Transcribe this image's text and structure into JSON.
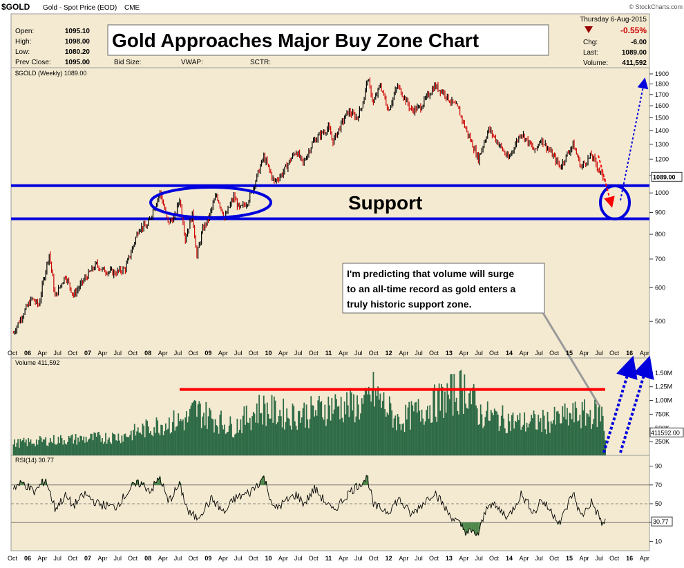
{
  "header": {
    "symbol": "$GOLD",
    "description": "Gold - Spot Price (EOD)",
    "exchange": "CME",
    "source": "© StockCharts.com",
    "date": "Thursday  6-Aug-2015",
    "pct_change": "-0.55%",
    "chg_label": "Chg:",
    "chg_value": "-6.00",
    "last_label": "Last:",
    "last_value": "1089.00",
    "volume_label": "Volume:",
    "volume_value": "411,592",
    "open_label": "Open:",
    "open_value": "1095.10",
    "high_label": "High:",
    "high_value": "1098.00",
    "low_label": "Low:",
    "low_value": "1080.20",
    "prev_label": "Prev Close:",
    "prev_value": "1095.00",
    "bid_label": "Bid Size:",
    "vwap_label": "VWAP:",
    "sctr_label": "SCTR:"
  },
  "annotations": {
    "title_box": "Gold Approaches Major Buy Zone Chart",
    "support_label": "Support",
    "callout": [
      "I'm predicting that volume will surge",
      "to an all-time record as gold enters a",
      "truly historic support zone."
    ]
  },
  "colors": {
    "panel_bg": "#f4ead1",
    "price_up": "#000000",
    "price_down": "#cc0000",
    "support_lines": "#0000dd",
    "volume_bars": "#2e6b46",
    "resistance_line": "#ff0000",
    "rsi_fill": "#3a7a3a"
  },
  "chart_data": [
    {
      "type": "line",
      "panel": "price",
      "legend": "$GOLD (Weekly) 1089.00",
      "last_label": "1089.00",
      "scale": "log",
      "ylim": [
        420,
        1950
      ],
      "yticks": [
        500,
        600,
        700,
        800,
        900,
        1000,
        1100,
        1200,
        1300,
        1400,
        1500,
        1600,
        1700,
        1800,
        1900
      ],
      "x_range": [
        "2005-10-01",
        "2016-05-01"
      ],
      "x_ticks": [
        "Oct",
        "06",
        "Apr",
        "Jul",
        "Oct",
        "07",
        "Apr",
        "Jul",
        "Oct",
        "08",
        "Apr",
        "Jul",
        "Oct",
        "09",
        "Apr",
        "Jul",
        "Oct",
        "10",
        "Apr",
        "Jul",
        "Oct",
        "11",
        "Apr",
        "Jul",
        "Oct",
        "12",
        "Apr",
        "Jul",
        "Oct",
        "13",
        "Apr",
        "Jul",
        "Oct",
        "14",
        "Apr",
        "Jul",
        "Oct",
        "15",
        "Apr",
        "Jul",
        "Oct",
        "16",
        "Apr"
      ],
      "x_tick_dates": [
        "2005-10",
        "2006-01",
        "2006-04",
        "2006-07",
        "2006-10",
        "2007-01",
        "2007-04",
        "2007-07",
        "2007-10",
        "2008-01",
        "2008-04",
        "2008-07",
        "2008-10",
        "2009-01",
        "2009-04",
        "2009-07",
        "2009-10",
        "2010-01",
        "2010-04",
        "2010-07",
        "2010-10",
        "2011-01",
        "2011-04",
        "2011-07",
        "2011-10",
        "2012-01",
        "2012-04",
        "2012-07",
        "2012-10",
        "2013-01",
        "2013-04",
        "2013-07",
        "2013-10",
        "2014-01",
        "2014-04",
        "2014-07",
        "2014-10",
        "2015-01",
        "2015-04",
        "2015-07",
        "2015-10",
        "2016-01",
        "2016-04"
      ],
      "support_levels": [
        1040,
        870
      ],
      "points": [
        [
          "2005-10-07",
          470
        ],
        [
          "2005-12-09",
          525
        ],
        [
          "2006-01-27",
          565
        ],
        [
          "2006-03-10",
          545
        ],
        [
          "2006-05-12",
          720
        ],
        [
          "2006-06-16",
          570
        ],
        [
          "2006-08-18",
          640
        ],
        [
          "2006-10-06",
          575
        ],
        [
          "2006-12-15",
          630
        ],
        [
          "2007-02-23",
          680
        ],
        [
          "2007-03-30",
          660
        ],
        [
          "2007-06-15",
          650
        ],
        [
          "2007-08-17",
          665
        ],
        [
          "2007-09-28",
          740
        ],
        [
          "2007-11-09",
          830
        ],
        [
          "2007-12-28",
          835
        ],
        [
          "2008-02-29",
          970
        ],
        [
          "2008-03-14",
          1003
        ],
        [
          "2008-05-02",
          850
        ],
        [
          "2008-06-13",
          880
        ],
        [
          "2008-07-11",
          970
        ],
        [
          "2008-08-15",
          780
        ],
        [
          "2008-09-26",
          890
        ],
        [
          "2008-10-24",
          710
        ],
        [
          "2008-11-28",
          820
        ],
        [
          "2009-01-02",
          870
        ],
        [
          "2009-02-20",
          990
        ],
        [
          "2009-04-10",
          870
        ],
        [
          "2009-06-05",
          980
        ],
        [
          "2009-07-10",
          915
        ],
        [
          "2009-08-28",
          955
        ],
        [
          "2009-10-09",
          1050
        ],
        [
          "2009-12-04",
          1215
        ],
        [
          "2010-02-05",
          1060
        ],
        [
          "2010-03-26",
          1110
        ],
        [
          "2010-06-18",
          1255
        ],
        [
          "2010-07-30",
          1170
        ],
        [
          "2010-10-01",
          1320
        ],
        [
          "2010-11-12",
          1370
        ],
        [
          "2010-12-31",
          1420
        ],
        [
          "2011-01-28",
          1320
        ],
        [
          "2011-04-29",
          1550
        ],
        [
          "2011-06-24",
          1500
        ],
        [
          "2011-07-29",
          1630
        ],
        [
          "2011-08-26",
          1850
        ],
        [
          "2011-09-30",
          1620
        ],
        [
          "2011-11-11",
          1790
        ],
        [
          "2011-12-30",
          1560
        ],
        [
          "2012-02-24",
          1780
        ],
        [
          "2012-05-18",
          1560
        ],
        [
          "2012-07-13",
          1590
        ],
        [
          "2012-10-05",
          1780
        ],
        [
          "2012-11-30",
          1720
        ],
        [
          "2012-12-28",
          1660
        ],
        [
          "2013-02-22",
          1580
        ],
        [
          "2013-04-19",
          1390
        ],
        [
          "2013-06-28",
          1200
        ],
        [
          "2013-08-30",
          1410
        ],
        [
          "2013-12-27",
          1200
        ],
        [
          "2014-03-14",
          1385
        ],
        [
          "2014-06-06",
          1250
        ],
        [
          "2014-07-11",
          1340
        ],
        [
          "2014-11-07",
          1150
        ],
        [
          "2015-01-23",
          1300
        ],
        [
          "2015-03-13",
          1150
        ],
        [
          "2015-05-15",
          1225
        ],
        [
          "2015-07-24",
          1085
        ],
        [
          "2015-08-07",
          1089
        ]
      ]
    },
    {
      "type": "bar",
      "panel": "volume",
      "legend": "Volume 411,592",
      "last_label": "411592.00",
      "ylim": [
        0,
        1750000
      ],
      "yticks": [
        250000,
        500000,
        750000,
        1000000,
        1250000,
        1500000
      ],
      "ytick_labels": [
        "250K",
        "500K",
        "750K",
        "1.00M",
        "1.25M",
        "1.50M"
      ],
      "resistance_level": 1200000,
      "points": [
        [
          "2005-10-07",
          300000
        ],
        [
          "2006-06-01",
          380000
        ],
        [
          "2007-01-01",
          420000
        ],
        [
          "2007-08-01",
          480000
        ],
        [
          "2008-03-14",
          780000
        ],
        [
          "2008-09-01",
          900000
        ],
        [
          "2008-10-10",
          1150000
        ],
        [
          "2009-06-01",
          700000
        ],
        [
          "2009-11-13",
          1180000
        ],
        [
          "2010-05-14",
          1000000
        ],
        [
          "2010-10-08",
          1100000
        ],
        [
          "2011-01-14",
          1230000
        ],
        [
          "2011-08-12",
          1250000
        ],
        [
          "2011-09-23",
          1600000
        ],
        [
          "2012-03-01",
          850000
        ],
        [
          "2013-04-19",
          1700000
        ],
        [
          "2013-07-01",
          1050000
        ],
        [
          "2014-03-01",
          820000
        ],
        [
          "2014-09-01",
          850000
        ],
        [
          "2015-01-16",
          1000000
        ],
        [
          "2015-07-24",
          1050000
        ],
        [
          "2015-08-07",
          411592
        ]
      ]
    },
    {
      "type": "line",
      "panel": "rsi",
      "legend": "RSI(14) 30.77",
      "last_label": "30.77",
      "ylim": [
        0,
        100
      ],
      "yticks": [
        10,
        30,
        50,
        70,
        90
      ],
      "reference_lines": [
        30,
        50,
        70
      ],
      "points": [
        [
          "2005-10-07",
          68
        ],
        [
          "2005-12-09",
          72
        ],
        [
          "2006-02-10",
          62
        ],
        [
          "2006-04-21",
          76
        ],
        [
          "2006-06-16",
          45
        ],
        [
          "2006-08-18",
          58
        ],
        [
          "2006-10-06",
          48
        ],
        [
          "2006-12-15",
          60
        ],
        [
          "2007-03-02",
          50
        ],
        [
          "2007-06-15",
          46
        ],
        [
          "2007-09-28",
          68
        ],
        [
          "2007-11-16",
          72
        ],
        [
          "2008-01-18",
          64
        ],
        [
          "2008-03-14",
          78
        ],
        [
          "2008-05-02",
          52
        ],
        [
          "2008-07-11",
          70
        ],
        [
          "2008-09-05",
          40
        ],
        [
          "2008-10-24",
          35
        ],
        [
          "2009-01-23",
          55
        ],
        [
          "2009-04-10",
          40
        ],
        [
          "2009-06-05",
          55
        ],
        [
          "2009-09-11",
          62
        ],
        [
          "2009-12-04",
          78
        ],
        [
          "2010-02-05",
          44
        ],
        [
          "2010-06-18",
          60
        ],
        [
          "2010-08-06",
          50
        ],
        [
          "2010-10-08",
          66
        ],
        [
          "2011-01-28",
          42
        ],
        [
          "2011-05-06",
          62
        ],
        [
          "2011-08-26",
          78
        ],
        [
          "2011-09-30",
          48
        ],
        [
          "2011-12-30",
          42
        ],
        [
          "2012-03-02",
          55
        ],
        [
          "2012-05-18",
          38
        ],
        [
          "2012-10-05",
          63
        ],
        [
          "2012-12-28",
          40
        ],
        [
          "2013-02-22",
          30
        ],
        [
          "2013-04-19",
          20
        ],
        [
          "2013-06-28",
          18
        ],
        [
          "2013-08-30",
          52
        ],
        [
          "2013-12-27",
          36
        ],
        [
          "2014-03-14",
          60
        ],
        [
          "2014-06-06",
          40
        ],
        [
          "2014-07-11",
          55
        ],
        [
          "2014-11-07",
          30
        ],
        [
          "2015-01-23",
          62
        ],
        [
          "2015-03-13",
          36
        ],
        [
          "2015-05-15",
          52
        ],
        [
          "2015-07-24",
          28
        ],
        [
          "2015-08-07",
          30.77
        ]
      ]
    }
  ]
}
